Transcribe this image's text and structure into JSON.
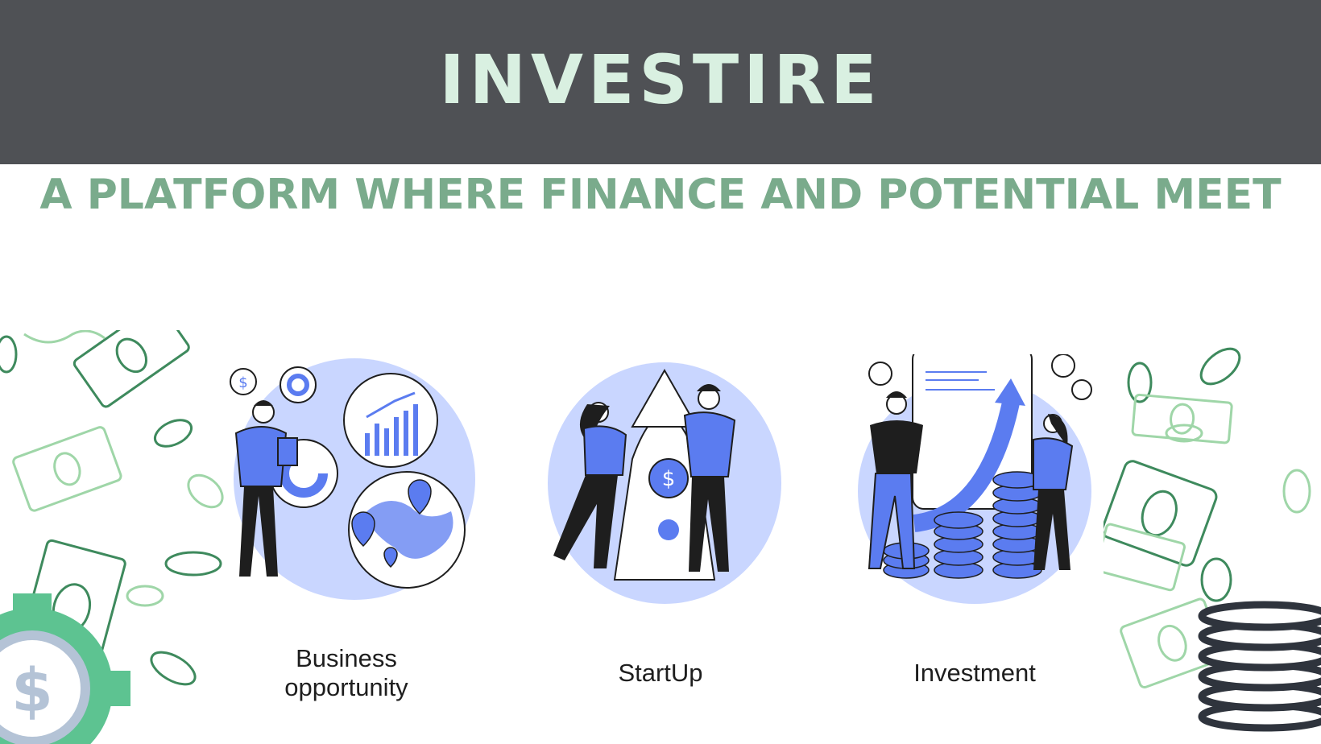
{
  "header": {
    "title": "INVESTIRE"
  },
  "tagline": "A PLATFORM WHERE FINANCE AND POTENTIAL MEET",
  "cards": [
    {
      "label": "Business opportunity",
      "icon": "business-opportunity-illustration"
    },
    {
      "label": "StartUp",
      "icon": "startup-rocket-illustration"
    },
    {
      "label": "Investment",
      "icon": "investment-growth-illustration"
    }
  ],
  "colors": {
    "header_bg": "#4f5155",
    "title": "#d9f0e1",
    "tagline": "#7aab8c",
    "accent_blue": "#5b7cf0",
    "light_blue": "#c9d6ff",
    "money_green": "#3e8a5d",
    "gear_green": "#5dc391",
    "coin_dark": "#2f343d"
  }
}
